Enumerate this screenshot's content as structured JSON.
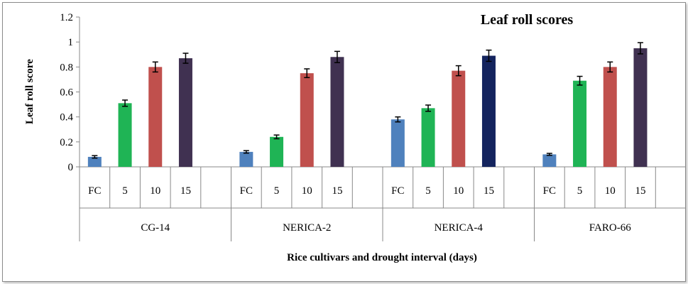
{
  "chart_data": {
    "type": "bar",
    "title": "Leaf roll scores",
    "xlabel": "Rice cultivars and drought interval (days)",
    "ylabel": "Leaf roll score",
    "ylim": [
      0,
      1.2
    ],
    "yticks": [
      "0",
      "0.2",
      "0.4",
      "0.6",
      "0.8",
      "1",
      "1.2"
    ],
    "subcategories": [
      "FC",
      "5",
      "10",
      "15"
    ],
    "groups": [
      {
        "name": "CG-14",
        "values": [
          0.08,
          0.51,
          0.8,
          0.87
        ],
        "errors": [
          0.01,
          0.025,
          0.04,
          0.04
        ]
      },
      {
        "name": "NERICA-2",
        "values": [
          0.12,
          0.24,
          0.75,
          0.88
        ],
        "errors": [
          0.01,
          0.015,
          0.035,
          0.045
        ]
      },
      {
        "name": "NERICA-4",
        "values": [
          0.38,
          0.47,
          0.77,
          0.89
        ],
        "errors": [
          0.02,
          0.025,
          0.04,
          0.045
        ]
      },
      {
        "name": "FARO-66",
        "values": [
          0.1,
          0.69,
          0.8,
          0.95
        ],
        "errors": [
          0.008,
          0.035,
          0.04,
          0.045
        ]
      }
    ],
    "colors": [
      "#4f81bd",
      "#1fb455",
      "#c0504d",
      "#403151"
    ],
    "highlight_color": "#14245e",
    "highlight": {
      "group": 2,
      "bar": 3
    },
    "grid": false,
    "legend": "none"
  }
}
